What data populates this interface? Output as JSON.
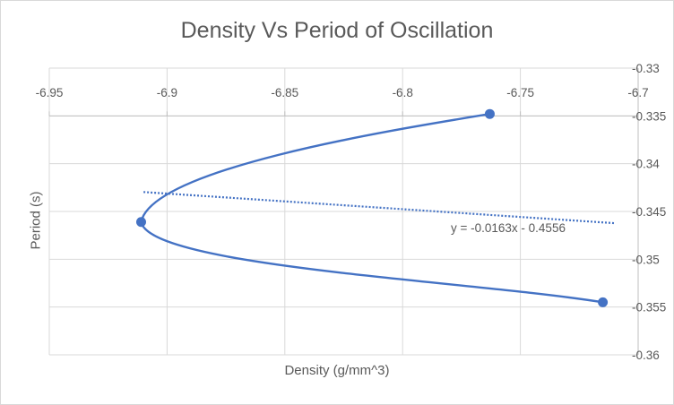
{
  "chart_data": {
    "type": "scatter",
    "title": "Density Vs Period of Oscillation",
    "xlabel": "Density (g/mm^3)",
    "ylabel": "Period (s)",
    "xlim": [
      -6.95,
      -6.7
    ],
    "ylim": [
      -0.36,
      -0.33
    ],
    "x_ticks": [
      "-6.95",
      "-6.9",
      "-6.85",
      "-6.8",
      "-6.75",
      "-6.7"
    ],
    "y_ticks": [
      "-0.33",
      "-0.335",
      "-0.34",
      "-0.345",
      "-0.35",
      "-0.355",
      "-0.36"
    ],
    "x_axis_position": "top",
    "y_axis_position": "right",
    "grid": true,
    "smooth_line": true,
    "series": [
      {
        "points": [
          {
            "x": -6.763,
            "y": -0.3348
          },
          {
            "x": -6.911,
            "y": -0.3461
          },
          {
            "x": -6.715,
            "y": -0.3545
          }
        ],
        "color": "#4472c4"
      }
    ],
    "trendline": {
      "type": "linear",
      "equation": "y = -0.0163x - 0.4556",
      "x_range": [
        -6.91,
        -6.71
      ],
      "style": "dotted",
      "color": "#4472c4"
    }
  }
}
